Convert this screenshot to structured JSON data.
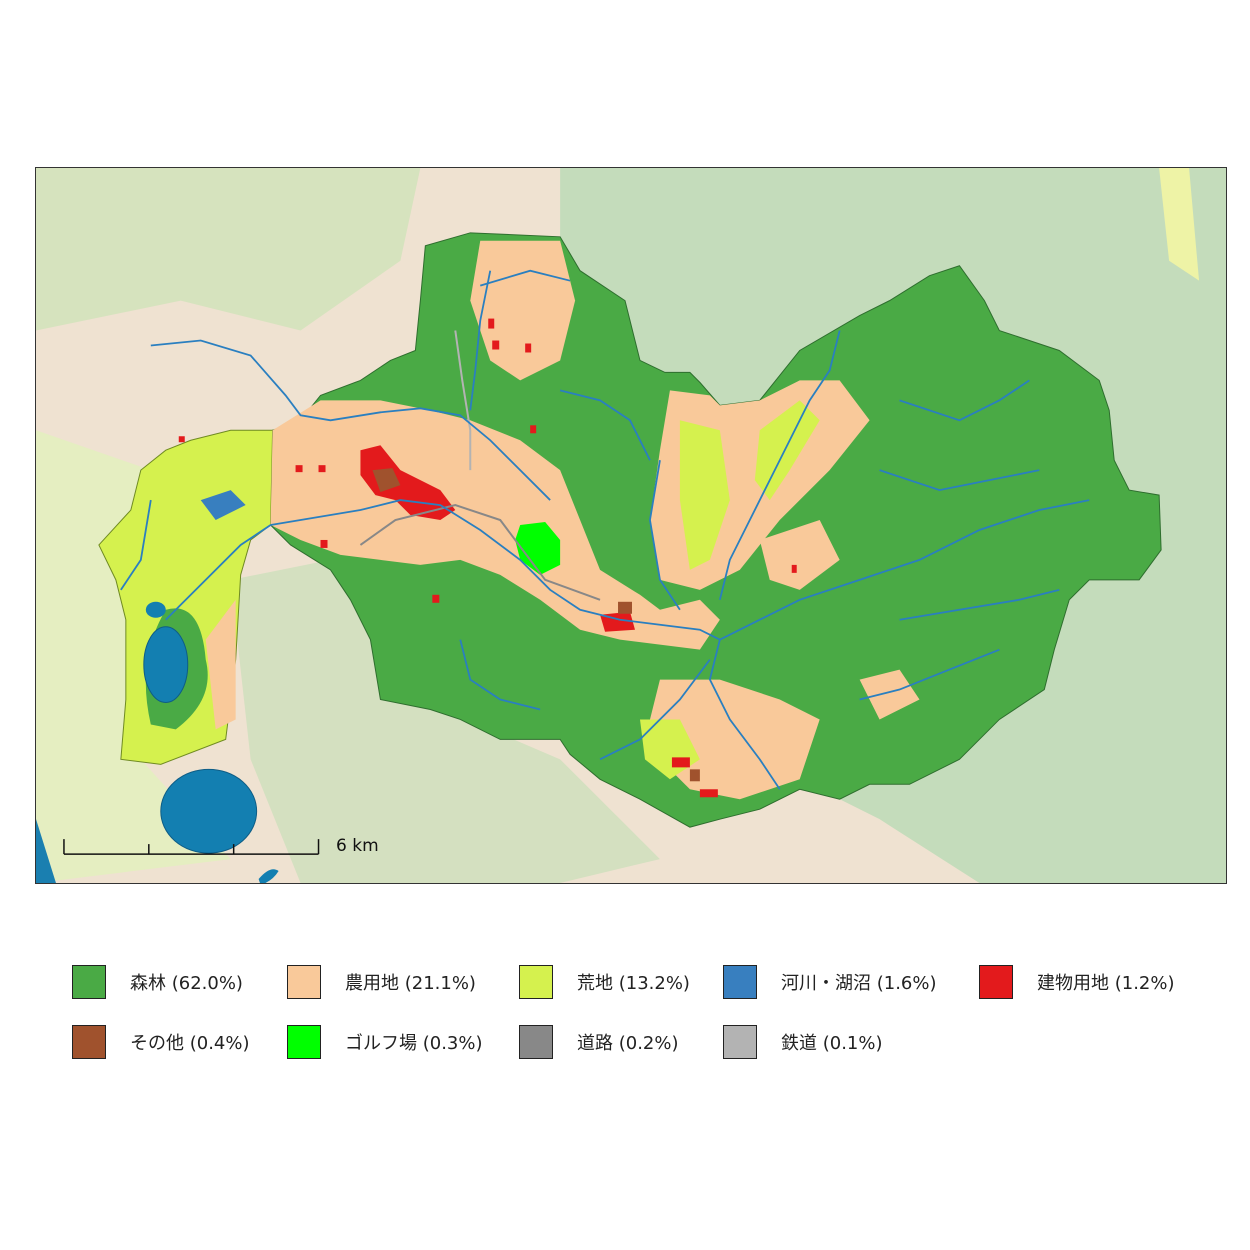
{
  "scale_bar": {
    "label": "6 km"
  },
  "legend": [
    {
      "label": "森林 (62.0%)",
      "color": "#4aaa45"
    },
    {
      "label": "農用地 (21.1%)",
      "color": "#f9c99a"
    },
    {
      "label": "荒地 (13.2%)",
      "color": "#d5f14e"
    },
    {
      "label": "河川・湖沼 (1.6%)",
      "color": "#387fbf"
    },
    {
      "label": "建物用地 (1.2%)",
      "color": "#e31a1c"
    },
    {
      "label": "その他 (0.4%)",
      "color": "#a0522d"
    },
    {
      "label": "ゴルフ場 (0.3%)",
      "color": "#00ff00"
    },
    {
      "label": "道路 (0.2%)",
      "color": "#888888"
    },
    {
      "label": "鉄道 (0.1%)",
      "color": "#b3b3b3"
    }
  ]
}
